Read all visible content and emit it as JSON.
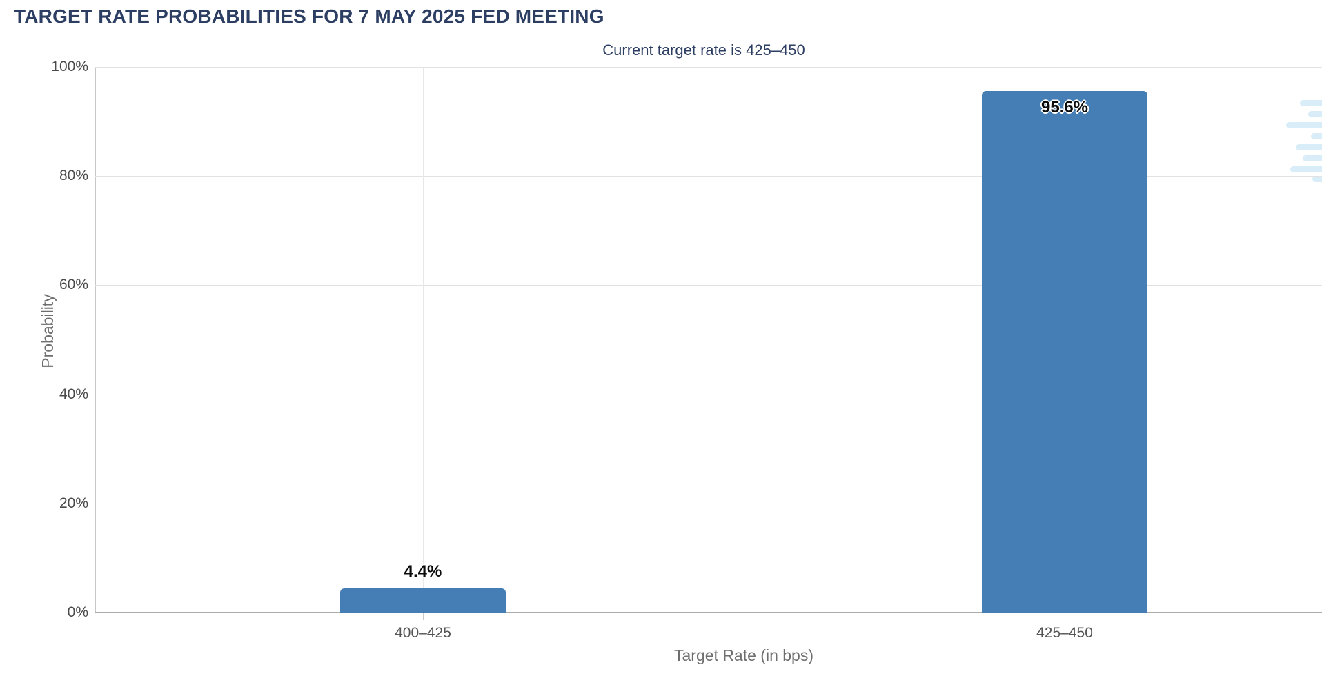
{
  "chart_data": {
    "type": "bar",
    "title": "TARGET RATE PROBABILITIES FOR 7 MAY 2025 FED MEETING",
    "subtitle": "Current target rate is 425–450",
    "categories": [
      "400–425",
      "425–450"
    ],
    "values": [
      4.4,
      95.6
    ],
    "value_labels": [
      "4.4%",
      "95.6%"
    ],
    "xlabel": "Target Rate (in bps)",
    "ylabel": "Probability",
    "ylim": [
      0,
      100
    ],
    "yticks": [
      0,
      20,
      40,
      60,
      80,
      100
    ],
    "ytick_labels": [
      "0%",
      "20%",
      "40%",
      "60%",
      "80%",
      "100%"
    ],
    "grid": true,
    "legend": "none",
    "bar_color": "#447EB5"
  },
  "colors": {
    "heading": "#2D3E63",
    "bar": "#447EB5",
    "axis_text": "#4a4a4a",
    "axis_title_text": "#6e6e6e",
    "gridline": "#e2e2e2",
    "axis_line": "#ababab",
    "value_label": "#0b0b0b",
    "watermark": "#d9edf9"
  }
}
